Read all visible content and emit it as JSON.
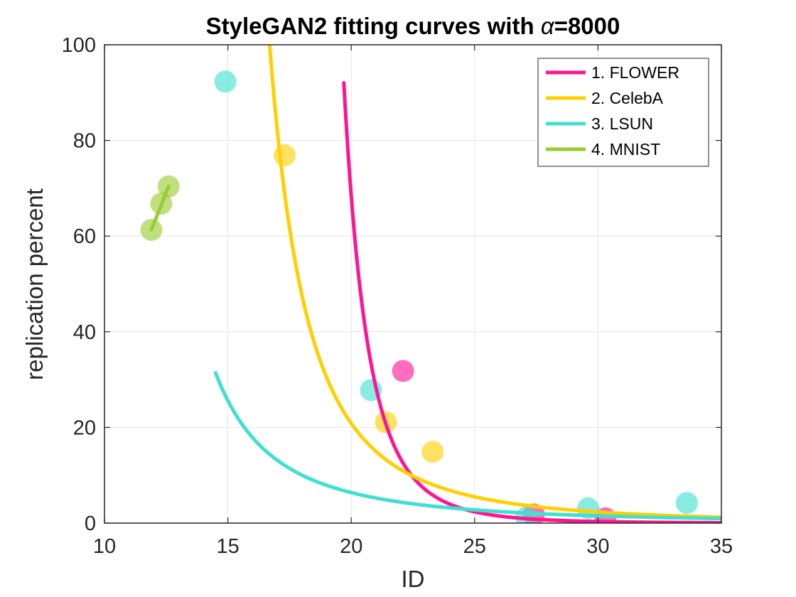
{
  "chart_data": {
    "type": "scatter",
    "title_prefix": "StyleGAN2 fitting curves with ",
    "title_symbol": "α",
    "title_suffix": "=8000",
    "xlabel": "ID",
    "ylabel": "replication percent",
    "xlim": [
      10,
      35
    ],
    "ylim": [
      0,
      100
    ],
    "xticks": [
      10,
      15,
      20,
      25,
      30,
      35
    ],
    "yticks": [
      0,
      20,
      40,
      60,
      80,
      100
    ],
    "grid": true,
    "legend_position": "top-right",
    "series": [
      {
        "name": "1. FLOWER",
        "color": "#ff1493",
        "points": [
          {
            "x": 22.1,
            "y": 31.8
          },
          {
            "x": 27.4,
            "y": 1.8
          },
          {
            "x": 30.3,
            "y": 1.0
          }
        ],
        "curve": {
          "model": "y = a / (x - b)^n",
          "a": 260000,
          "b": 14.8,
          "n": 5.0,
          "x_range": [
            19.7,
            35
          ]
        }
      },
      {
        "name": "2. CelebA",
        "color": "#ffd000",
        "points": [
          {
            "x": 17.3,
            "y": 76.9
          },
          {
            "x": 21.4,
            "y": 21.1
          },
          {
            "x": 23.3,
            "y": 14.9
          }
        ],
        "curve": {
          "model": "y = a / (x - b)^n",
          "a": 2800,
          "b": 12.9,
          "n": 2.5,
          "x_range": [
            16.4,
            35
          ]
        }
      },
      {
        "name": "3. LSUN",
        "color": "#40e0d0",
        "points": [
          {
            "x": 14.9,
            "y": 92.3
          },
          {
            "x": 20.8,
            "y": 27.8
          },
          {
            "x": 27.1,
            "y": 1.2
          },
          {
            "x": 29.6,
            "y": 3.1
          },
          {
            "x": 33.6,
            "y": 4.2
          }
        ],
        "curve": {
          "model": "y = a / (x - b)^n",
          "a": 1000,
          "b": 9.5,
          "n": 2.15,
          "x_range": [
            14.5,
            35
          ]
        }
      },
      {
        "name": "4. MNIST",
        "color": "#9acd32",
        "points": [
          {
            "x": 11.9,
            "y": 61.3
          },
          {
            "x": 12.3,
            "y": 66.8
          },
          {
            "x": 12.6,
            "y": 70.4
          }
        ],
        "curve": {
          "model": "linear",
          "x_range": [
            11.9,
            12.6
          ],
          "y_range": [
            61.3,
            70.4
          ]
        }
      }
    ]
  }
}
